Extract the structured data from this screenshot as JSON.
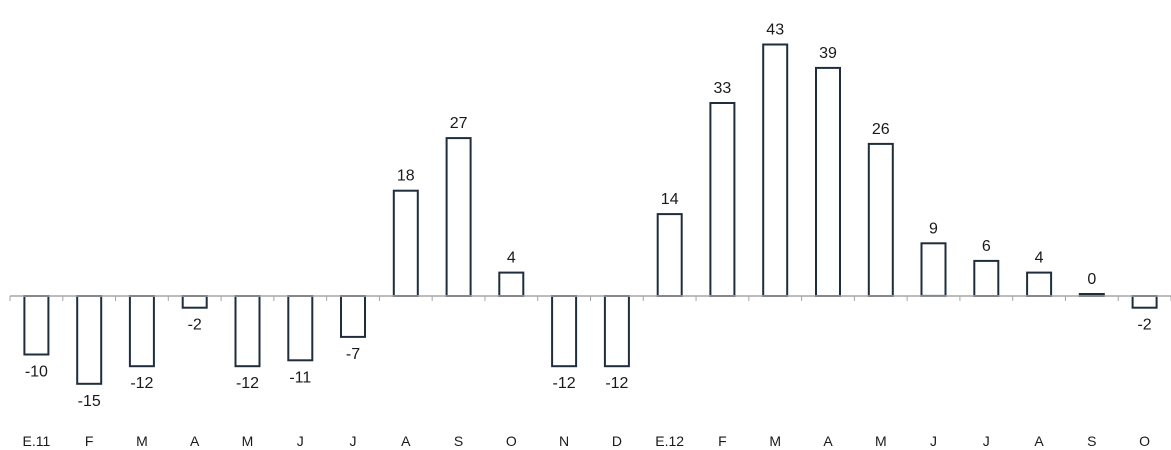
{
  "chart_data": {
    "type": "bar",
    "title": "",
    "xlabel": "",
    "ylabel": "",
    "categories": [
      "E.11",
      "F",
      "M",
      "A",
      "M",
      "J",
      "J",
      "A",
      "S",
      "O",
      "N",
      "D",
      "E.12",
      "F",
      "M",
      "A",
      "M",
      "J",
      "J",
      "A",
      "S",
      "O"
    ],
    "values": [
      -10,
      -15,
      -12,
      -2,
      -12,
      -11,
      -7,
      18,
      27,
      4,
      -12,
      -12,
      14,
      33,
      43,
      39,
      26,
      9,
      6,
      4,
      0,
      -2
    ],
    "data_labels": [
      "-10",
      "-15",
      "-12",
      "-2",
      "-12",
      "-11",
      "-7",
      "18",
      "27",
      "4",
      "-12",
      "-12",
      "14",
      "33",
      "43",
      "39",
      "26",
      "9",
      "6",
      "4",
      "0",
      "-2"
    ],
    "ylim": [
      -18,
      46
    ],
    "grid": false,
    "legend": "none",
    "colors": {
      "bar_fill": "#ffffff",
      "bar_stroke": "#1f2d3d",
      "axis": "#a6a6a6",
      "text": "#1a1a1a"
    }
  }
}
